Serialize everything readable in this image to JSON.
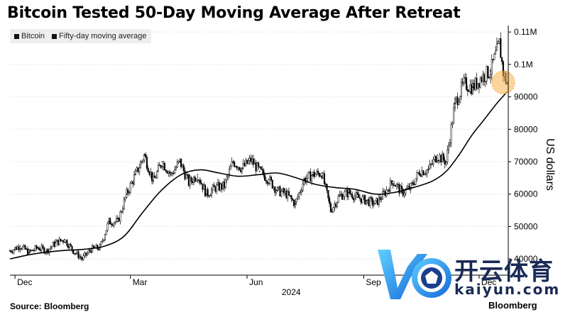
{
  "chart_data": {
    "type": "line",
    "title": "Bitcoin Tested 50-Day Moving Average After Retreat",
    "ylabel": "US dollars",
    "ylim": [
      35000,
      112000
    ],
    "y_ticks": [
      {
        "value": 40000,
        "label": "40000"
      },
      {
        "value": 50000,
        "label": "50000"
      },
      {
        "value": 60000,
        "label": "60000"
      },
      {
        "value": 70000,
        "label": "70000"
      },
      {
        "value": 80000,
        "label": "80000"
      },
      {
        "value": 90000,
        "label": "90000"
      },
      {
        "value": 100000,
        "label": "0.1M"
      },
      {
        "value": 110000,
        "label": "0.11M"
      }
    ],
    "x_ticks": [
      {
        "date": "2023-12-01",
        "label": "Dec"
      },
      {
        "date": "2024-03-01",
        "label": "Mar"
      },
      {
        "date": "2024-06-01",
        "label": "Jun"
      },
      {
        "date": "2024-09-01",
        "label": "Sep"
      },
      {
        "date": "2024-12-01",
        "label": "Dec"
      }
    ],
    "x_year_label": "2024",
    "x_range": [
      "2023-11-27",
      "2024-12-24"
    ],
    "legend_placement": "top-left",
    "grid": "horizontal",
    "series": [
      {
        "name": "Bitcoin",
        "style": "candlestick",
        "color": "#000000",
        "points": [
          [
            "2023-11-27",
            42500
          ],
          [
            "2023-12-05",
            44000
          ],
          [
            "2023-12-12",
            42000
          ],
          [
            "2023-12-19",
            43500
          ],
          [
            "2023-12-26",
            42500
          ],
          [
            "2024-01-02",
            45000
          ],
          [
            "2024-01-09",
            46000
          ],
          [
            "2024-01-16",
            42500
          ],
          [
            "2024-01-23",
            40000
          ],
          [
            "2024-01-30",
            43000
          ],
          [
            "2024-02-06",
            43500
          ],
          [
            "2024-02-13",
            51500
          ],
          [
            "2024-02-20",
            51500
          ],
          [
            "2024-02-27",
            60000
          ],
          [
            "2024-03-05",
            66000
          ],
          [
            "2024-03-12",
            72000
          ],
          [
            "2024-03-19",
            64000
          ],
          [
            "2024-03-26",
            70000
          ],
          [
            "2024-04-02",
            66000
          ],
          [
            "2024-04-09",
            70000
          ],
          [
            "2024-04-16",
            63500
          ],
          [
            "2024-04-23",
            66000
          ],
          [
            "2024-04-30",
            60000
          ],
          [
            "2024-05-07",
            62000
          ],
          [
            "2024-05-14",
            62500
          ],
          [
            "2024-05-21",
            70000
          ],
          [
            "2024-05-28",
            68000
          ],
          [
            "2024-06-04",
            70500
          ],
          [
            "2024-06-11",
            67000
          ],
          [
            "2024-06-18",
            64500
          ],
          [
            "2024-06-25",
            61000
          ],
          [
            "2024-07-02",
            60000
          ],
          [
            "2024-07-09",
            57000
          ],
          [
            "2024-07-16",
            64500
          ],
          [
            "2024-07-23",
            66000
          ],
          [
            "2024-07-30",
            66500
          ],
          [
            "2024-08-06",
            55000
          ],
          [
            "2024-08-13",
            59500
          ],
          [
            "2024-08-20",
            60500
          ],
          [
            "2024-08-27",
            59000
          ],
          [
            "2024-09-03",
            58000
          ],
          [
            "2024-09-10",
            57000
          ],
          [
            "2024-09-17",
            60000
          ],
          [
            "2024-09-24",
            64000
          ],
          [
            "2024-10-01",
            60500
          ],
          [
            "2024-10-08",
            62000
          ],
          [
            "2024-10-15",
            67000
          ],
          [
            "2024-10-22",
            67500
          ],
          [
            "2024-10-29",
            72000
          ],
          [
            "2024-11-05",
            70000
          ],
          [
            "2024-11-12",
            88000
          ],
          [
            "2024-11-19",
            94000
          ],
          [
            "2024-11-26",
            93000
          ],
          [
            "2024-12-03",
            96000
          ],
          [
            "2024-12-10",
            98000
          ],
          [
            "2024-12-17",
            106500
          ],
          [
            "2024-12-20",
            97500
          ],
          [
            "2024-12-23",
            94000
          ]
        ]
      },
      {
        "name": "Fifty-day moving average",
        "style": "line",
        "color": "#000000",
        "points": [
          [
            "2023-11-27",
            40000
          ],
          [
            "2023-12-15",
            41500
          ],
          [
            "2024-01-05",
            42500
          ],
          [
            "2024-01-25",
            43000
          ],
          [
            "2024-02-10",
            44000
          ],
          [
            "2024-02-25",
            47000
          ],
          [
            "2024-03-10",
            54000
          ],
          [
            "2024-03-25",
            61000
          ],
          [
            "2024-04-10",
            66000
          ],
          [
            "2024-04-25",
            67500
          ],
          [
            "2024-05-10",
            66500
          ],
          [
            "2024-05-25",
            65500
          ],
          [
            "2024-06-10",
            66000
          ],
          [
            "2024-06-25",
            66500
          ],
          [
            "2024-07-10",
            65000
          ],
          [
            "2024-07-25",
            63000
          ],
          [
            "2024-08-10",
            62000
          ],
          [
            "2024-08-25",
            61500
          ],
          [
            "2024-09-10",
            60000
          ],
          [
            "2024-09-25",
            60500
          ],
          [
            "2024-10-10",
            62000
          ],
          [
            "2024-10-25",
            64000
          ],
          [
            "2024-11-05",
            67000
          ],
          [
            "2024-11-15",
            72000
          ],
          [
            "2024-11-25",
            78000
          ],
          [
            "2024-12-05",
            83000
          ],
          [
            "2024-12-15",
            88000
          ],
          [
            "2024-12-23",
            91500
          ]
        ]
      }
    ],
    "annotations": [
      {
        "type": "highlight-circle",
        "date": "2024-12-20",
        "value": 94000,
        "color": "#f7b24a"
      }
    ]
  },
  "legend": {
    "items": [
      {
        "label": "Bitcoin"
      },
      {
        "label": "Fifty-day moving average"
      }
    ]
  },
  "footer": {
    "source": "Source: Bloomberg",
    "brand": "Bloomberg"
  },
  "watermark": {
    "cn": "开云体育",
    "en": "kaiyun.com"
  }
}
